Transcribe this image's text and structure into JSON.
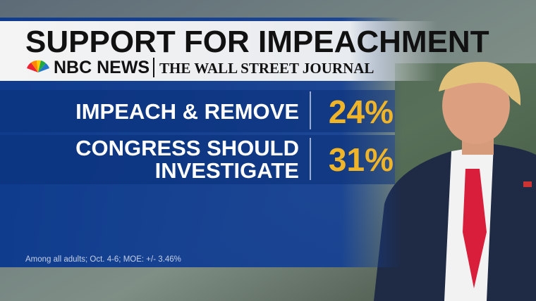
{
  "header": {
    "title": "SUPPORT FOR IMPEACHMENT",
    "sources": [
      "NBC NEWS",
      "THE WALL STREET JOURNAL"
    ]
  },
  "rows": [
    {
      "label_lines": [
        "IMPEACH & REMOVE"
      ],
      "value": "24%"
    },
    {
      "label_lines": [
        "CONGRESS SHOULD",
        "INVESTIGATE"
      ],
      "value": "31%"
    }
  ],
  "footnote": "Among all adults; Oct. 4-6; MOE: +/- 3.46%"
}
